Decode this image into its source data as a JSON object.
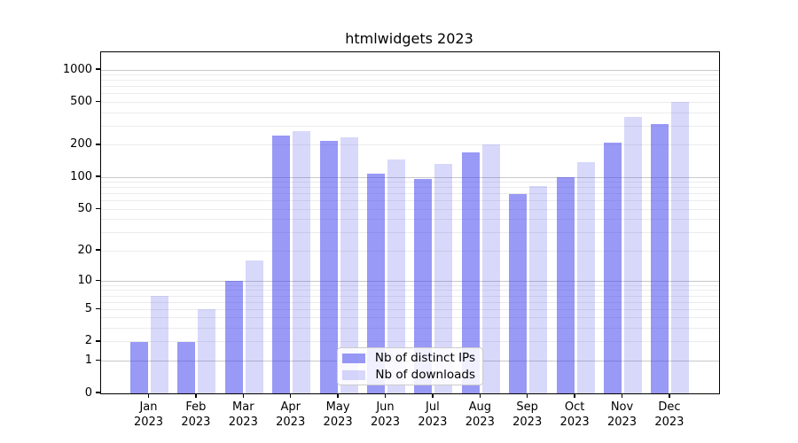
{
  "title": "htmlwidgets 2023",
  "chart_data": {
    "type": "bar",
    "title": "htmlwidgets 2023",
    "categories": [
      "Jan 2023",
      "Feb 2023",
      "Mar 2023",
      "Apr 2023",
      "May 2023",
      "Jun 2023",
      "Jul 2023",
      "Aug 2023",
      "Sep 2023",
      "Oct 2023",
      "Nov 2023",
      "Dec 2023"
    ],
    "series": [
      {
        "name": "Nb of distinct IPs",
        "color": "rgba(70,70,238,0.55)",
        "values": [
          2,
          2,
          10,
          248,
          220,
          108,
          96,
          172,
          70,
          100,
          210,
          315
        ]
      },
      {
        "name": "Nb of downloads",
        "color": "rgba(70,70,238,0.21)",
        "values": [
          7,
          5,
          16,
          270,
          236,
          148,
          134,
          204,
          83,
          140,
          365,
          505
        ]
      }
    ],
    "xlabel": "",
    "ylabel": "",
    "yscale": "log1p",
    "yticks": [
      0,
      1,
      2,
      5,
      10,
      20,
      50,
      100,
      200,
      500,
      1000
    ],
    "ylim": [
      0,
      1460
    ],
    "grid": true,
    "legend_position": "lower center",
    "colors": {
      "major_grid": "#c8c8c8",
      "minor_grid": "#ececec",
      "axis": "#000000",
      "background": "#ffffff"
    }
  }
}
